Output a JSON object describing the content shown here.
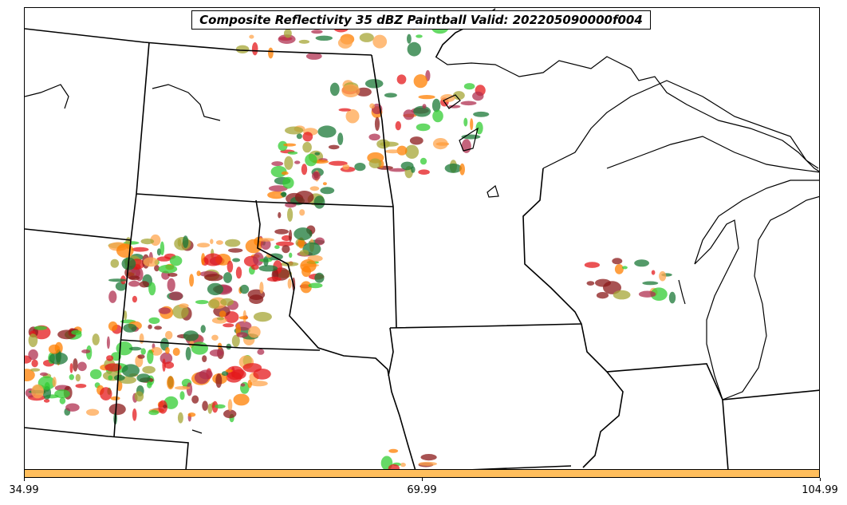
{
  "title": "Composite Reflectivity 35 dBZ Paintball Valid: 202205090000f004",
  "colorbar": {
    "color": "#ffbe5c",
    "tick_labels": [
      "34.99",
      "69.99",
      "104.99"
    ]
  },
  "paintball_colors": [
    "#e41a1c",
    "#ff7f00",
    "#ffa64d",
    "#33cc33",
    "#1b7837",
    "#8b1a1a",
    "#a6a635",
    "#b03050"
  ],
  "map": {
    "features": [
      "state-boundaries",
      "great-lakes",
      "coastlines",
      "reflectivity-paintball-swaths"
    ]
  }
}
